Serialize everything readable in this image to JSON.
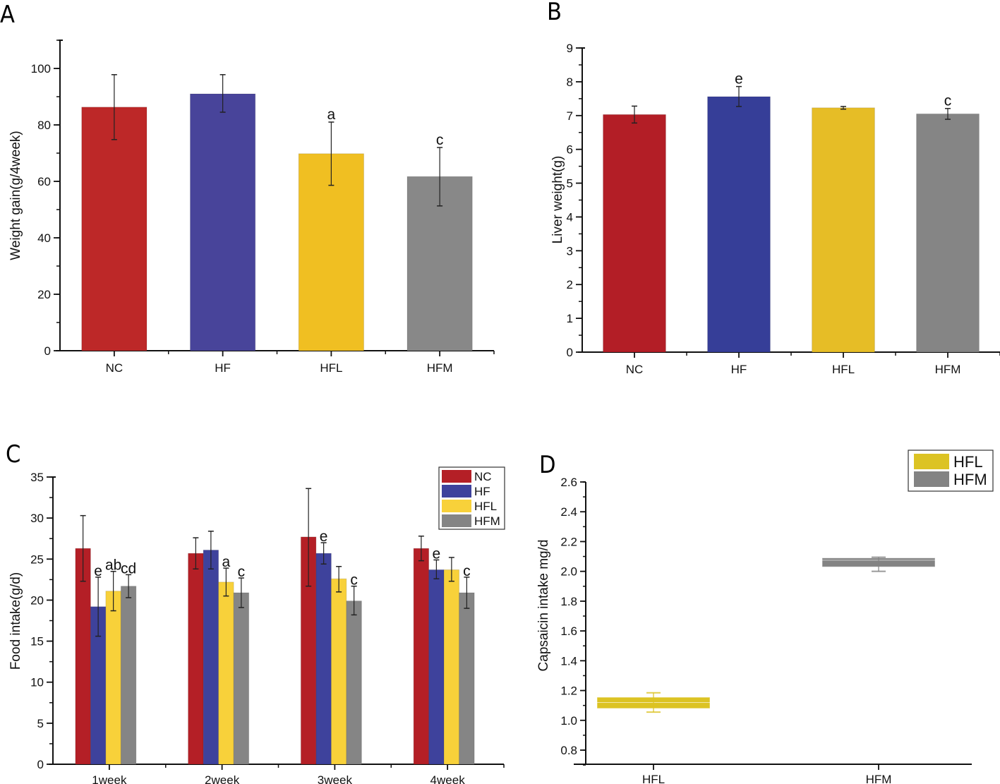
{
  "chart_data": [
    {
      "panel": "A",
      "type": "bar",
      "title": "",
      "xlabel": "",
      "ylabel": "Weight gain(g/4week)",
      "ylim": [
        0,
        110
      ],
      "yticks": [
        0,
        20,
        40,
        60,
        80,
        100
      ],
      "ytick_labels": [
        "0",
        "20",
        "40",
        "60",
        "80",
        "100"
      ],
      "grid": false,
      "categories": [
        "NC",
        "HF",
        "HFL",
        "HFM"
      ],
      "values": [
        86.3,
        91.0,
        69.8,
        61.7
      ],
      "error_low": [
        74.8,
        84.5,
        58.6,
        51.3
      ],
      "error_high": [
        97.8,
        97.8,
        81.0,
        72.0
      ],
      "colors": [
        "#bd2828",
        "#48449a",
        "#f0bf22",
        "#888888"
      ],
      "annotations": [
        "",
        "",
        "a",
        "c"
      ]
    },
    {
      "panel": "B",
      "type": "bar",
      "title": "",
      "xlabel": "",
      "ylabel": "Liver weight(g)",
      "ylim": [
        0,
        9
      ],
      "yticks": [
        0,
        1,
        2,
        3,
        4,
        5,
        6,
        7,
        8,
        9
      ],
      "ytick_labels": [
        "0",
        "1",
        "2",
        "3",
        "4",
        "5",
        "6",
        "7",
        "8",
        "9"
      ],
      "grid": false,
      "categories": [
        "NC",
        "HF",
        "HFL",
        "HFM"
      ],
      "values": [
        7.03,
        7.56,
        7.23,
        7.05
      ],
      "error_low": [
        6.78,
        7.27,
        7.19,
        6.89
      ],
      "error_high": [
        7.28,
        7.86,
        7.27,
        7.21
      ],
      "colors": [
        "#b31e26",
        "#363e98",
        "#e6bd26",
        "#858585"
      ],
      "annotations": [
        "",
        "e",
        "",
        "c"
      ]
    },
    {
      "panel": "C",
      "type": "bar",
      "title": "",
      "xlabel": "",
      "ylabel": "Food intake(g/d)",
      "ylim": [
        0,
        35
      ],
      "yticks": [
        0,
        5,
        10,
        15,
        20,
        25,
        30,
        35
      ],
      "ytick_labels": [
        "0",
        "5",
        "10",
        "15",
        "20",
        "25",
        "30",
        "35"
      ],
      "grid": false,
      "legend": "top-right",
      "categories": [
        "1week",
        "2week",
        "3week",
        "4week"
      ],
      "series": [
        {
          "name": "NC",
          "color": "#b41f26",
          "values": [
            26.3,
            25.7,
            27.7,
            26.3
          ],
          "error_low": [
            22.3,
            23.8,
            21.7,
            24.8
          ],
          "error_high": [
            30.3,
            27.6,
            33.6,
            27.8
          ],
          "annotations": [
            "",
            "",
            "",
            ""
          ]
        },
        {
          "name": "HF",
          "color": "#3e429c",
          "values": [
            19.2,
            26.1,
            25.7,
            23.7
          ],
          "error_low": [
            15.6,
            23.8,
            24.4,
            22.6
          ],
          "error_high": [
            22.8,
            28.4,
            27.0,
            24.9
          ],
          "annotations": [
            "e",
            "",
            "e",
            "e"
          ]
        },
        {
          "name": "HFL",
          "color": "#f8d13a",
          "values": [
            21.1,
            22.2,
            22.6,
            23.7
          ],
          "error_low": [
            18.7,
            20.5,
            21.0,
            22.3
          ],
          "error_high": [
            23.5,
            23.9,
            24.1,
            25.2
          ],
          "annotations": [
            "ab",
            "a",
            "",
            ""
          ]
        },
        {
          "name": "HFM",
          "color": "#858585",
          "values": [
            21.7,
            20.9,
            19.9,
            20.9
          ],
          "error_low": [
            20.3,
            19.1,
            18.2,
            19.0
          ],
          "error_high": [
            23.1,
            22.7,
            21.7,
            22.8
          ],
          "annotations": [
            "cd",
            "c",
            "c",
            "c"
          ]
        }
      ]
    },
    {
      "panel": "D",
      "type": "box",
      "title": "",
      "xlabel": "",
      "ylabel": "Capsaicin intake mg/d",
      "ylim": [
        0.67,
        2.6
      ],
      "yticks": [
        0.8,
        1.0,
        1.2,
        1.4,
        1.6,
        1.8,
        2.0,
        2.2,
        2.4,
        2.6
      ],
      "ytick_labels": [
        "0.8",
        "1.0",
        "1.2",
        "1.4",
        "1.6",
        "1.8",
        "2.0",
        "2.2",
        "2.4",
        "2.6"
      ],
      "grid": false,
      "legend": "top-right",
      "categories": [
        "HFL",
        "HFM"
      ],
      "series": [
        {
          "name": "HFL",
          "color": "#dcc323",
          "q1": 1.08,
          "median": 1.12,
          "q3": 1.155,
          "whisker_low": 1.055,
          "whisker_high": 1.185
        },
        {
          "name": "HFM",
          "color": "#838383",
          "q1": 2.03,
          "median": 2.075,
          "q3": 2.09,
          "whisker_low": 2.0,
          "whisker_high": 2.095
        }
      ]
    }
  ],
  "panel_letters": [
    "A",
    "B",
    "C",
    "D"
  ]
}
